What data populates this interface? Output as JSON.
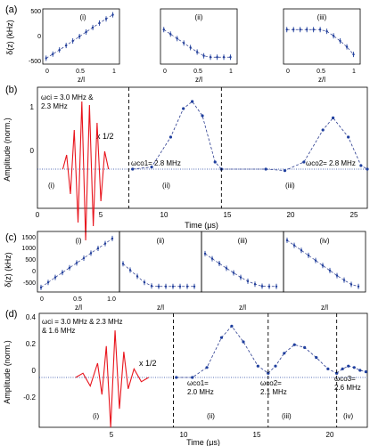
{
  "figure": {
    "panel_labels": [
      "(a)",
      "(b)",
      "(c)",
      "(d)"
    ],
    "a": {
      "ylabel": "δ(z) (kHz)",
      "xlabel": "z/l",
      "yticks": [
        "-500",
        "0",
        "500"
      ],
      "xticks": [
        "0",
        "0.5",
        "1"
      ],
      "subpanels": [
        "(i)",
        "(ii)",
        "(iii)"
      ]
    },
    "b": {
      "ylabel": "Amplitude (norm.)",
      "xlabel": "Time (μs)",
      "yticks": [
        "0",
        "1"
      ],
      "xticks": [
        "0",
        "5",
        "10",
        "15",
        "20",
        "25"
      ],
      "ann_input": [
        "ωci = 3.0 MHz &",
        "2.3 MHz"
      ],
      "ann_scale": "x 1/2",
      "ann_co1": "ωco1= 2.8 MHz",
      "ann_co2": "ωco2= 2.8 MHz",
      "section_labels": [
        "(i)",
        "(ii)",
        "(iii)"
      ]
    },
    "c": {
      "ylabel": "δ(z) (kHz)",
      "xlabel": "z/l",
      "yticks": [
        "-500",
        "0",
        "500",
        "1000",
        "1500"
      ],
      "xticks": [
        "0",
        "0.5",
        "1.0"
      ],
      "subpanels": [
        "(i)",
        "(ii)",
        "(iii)",
        "(iv)"
      ]
    },
    "d": {
      "ylabel": "Amplitude (norm.)",
      "xlabel": "Time (μs)",
      "yticks": [
        "-0.2",
        "0",
        "0.2",
        "0.4"
      ],
      "xticks": [
        "5",
        "10",
        "15",
        "20"
      ],
      "ann_input": [
        "ωci = 3.0 MHz & 2.3 MHz",
        "& 1.6 MHz"
      ],
      "ann_scale": "x 1/2",
      "ann_co1": [
        "ωco1=",
        "2.0 MHz"
      ],
      "ann_co2": [
        "ωco2=",
        "2.1 MHz"
      ],
      "ann_co3": [
        "ωco3=",
        "2.6 MHz"
      ],
      "section_labels": [
        "(i)",
        "(ii)",
        "(iii)",
        "(iv)"
      ]
    }
  },
  "colors": {
    "input": "#e8141c",
    "output": "#1f3f9e",
    "fit": "#2a3b8f",
    "axis": "#000000"
  },
  "chart_data": [
    {
      "type": "scatter",
      "panel": "a-i",
      "xlabel": "z/l",
      "ylabel": "δ(z) (kHz)",
      "xlim": [
        -0.05,
        1.1
      ],
      "ylim": [
        -800,
        800
      ],
      "x": [
        0,
        0.1,
        0.2,
        0.3,
        0.4,
        0.5,
        0.6,
        0.7,
        0.8,
        0.9,
        1.0
      ],
      "y": [
        -630,
        -510,
        -390,
        -260,
        -130,
        0,
        130,
        260,
        390,
        510,
        630
      ]
    },
    {
      "type": "scatter",
      "panel": "a-ii",
      "xlabel": "z/l",
      "xlim": [
        -0.05,
        1.1
      ],
      "ylim": [
        -800,
        800
      ],
      "x": [
        0,
        0.1,
        0.2,
        0.3,
        0.4,
        0.5,
        0.6,
        0.7,
        0.8,
        0.9,
        1.0
      ],
      "y": [
        200,
        70,
        -60,
        -190,
        -320,
        -450,
        -560,
        -600,
        -600,
        -600,
        -600
      ]
    },
    {
      "type": "scatter",
      "panel": "a-iii",
      "xlabel": "z/l",
      "xlim": [
        -0.05,
        1.1
      ],
      "ylim": [
        -800,
        800
      ],
      "x": [
        0,
        0.1,
        0.2,
        0.3,
        0.4,
        0.5,
        0.6,
        0.7,
        0.8,
        0.9,
        1.0
      ],
      "y": [
        200,
        200,
        200,
        200,
        200,
        200,
        150,
        20,
        -130,
        -300,
        -520
      ]
    },
    {
      "type": "line",
      "panel": "b",
      "xlabel": "Time (μs)",
      "ylabel": "Amplitude (norm.)",
      "xlim": [
        0,
        26
      ],
      "ylim": [
        -0.55,
        1.15
      ],
      "series": [
        {
          "name": "input",
          "x": [
            2.0,
            2.3,
            2.6,
            2.9,
            3.2,
            3.5,
            3.8,
            4.1,
            4.4,
            4.7,
            5.0,
            5.3,
            5.6
          ],
          "y": [
            0,
            0.2,
            -0.35,
            0.55,
            -0.75,
            0.95,
            -1.0,
            0.9,
            -0.8,
            0.65,
            -0.45,
            0.25,
            0
          ]
        },
        {
          "name": "output 1",
          "x": [
            7.5,
            9.0,
            10.5,
            11.5,
            12.2,
            13.0,
            14.0,
            14.5
          ],
          "y": [
            0.0,
            0.03,
            0.45,
            0.85,
            0.95,
            0.75,
            0.1,
            0.0
          ]
        },
        {
          "name": "output 2",
          "x": [
            14.5,
            18.0,
            19.5,
            21.0,
            22.5,
            23.3,
            24.5,
            25.5,
            26.0
          ],
          "y": [
            0.0,
            0.0,
            -0.02,
            0.1,
            0.55,
            0.72,
            0.45,
            0.05,
            0.0
          ]
        }
      ],
      "dividers": [
        7.2,
        14.5
      ]
    },
    {
      "type": "scatter",
      "panel": "c",
      "xlabel": "z/l",
      "ylabel": "δ(z) (kHz)",
      "xlim": [
        -0.05,
        1.1
      ],
      "ylim": [
        -700,
        1700
      ],
      "series": [
        {
          "name": "(i)",
          "x": [
            0,
            0.1,
            0.2,
            0.3,
            0.4,
            0.5,
            0.6,
            0.7,
            0.8,
            0.9,
            1.0
          ],
          "y": [
            -520,
            -320,
            -120,
            70,
            260,
            450,
            640,
            840,
            1030,
            1220,
            1420
          ]
        },
        {
          "name": "(ii)",
          "x": [
            0,
            0.1,
            0.2,
            0.3,
            0.4,
            0.5,
            0.6,
            0.7,
            0.8,
            0.9,
            1.0
          ],
          "y": [
            420,
            170,
            -80,
            -320,
            -460,
            -480,
            -480,
            -480,
            -480,
            -480,
            -480
          ]
        },
        {
          "name": "(iii)",
          "x": [
            0,
            0.1,
            0.2,
            0.3,
            0.4,
            0.5,
            0.6,
            0.7,
            0.8,
            0.9,
            1.0
          ],
          "y": [
            820,
            620,
            430,
            240,
            60,
            -120,
            -270,
            -390,
            -470,
            -480,
            -480
          ]
        },
        {
          "name": "(iv)",
          "x": [
            0,
            0.1,
            0.2,
            0.3,
            0.4,
            0.5,
            0.6,
            0.7,
            0.8,
            0.9,
            1.0
          ],
          "y": [
            1350,
            1150,
            950,
            750,
            550,
            350,
            150,
            -50,
            -230,
            -400,
            -480
          ]
        }
      ]
    },
    {
      "type": "line",
      "panel": "d",
      "xlabel": "Time (μs)",
      "ylabel": "Amplitude (norm.)",
      "xlim": [
        0,
        22.5
      ],
      "ylim": [
        -0.35,
        0.45
      ],
      "series": [
        {
          "name": "input",
          "x": [
            2.5,
            3.0,
            3.5,
            4.0,
            4.3,
            4.6,
            4.9,
            5.2,
            5.5,
            5.8,
            6.1,
            6.5,
            7.0,
            7.5
          ],
          "y": [
            0.0,
            0.03,
            -0.06,
            0.1,
            -0.12,
            0.22,
            -0.35,
            0.33,
            -0.22,
            0.18,
            -0.08,
            0.06,
            -0.03,
            0.0
          ]
        },
        {
          "name": "output 1",
          "x": [
            9.4,
            10.5,
            11.5,
            12.5,
            13.2,
            14.0,
            15.0,
            15.7
          ],
          "y": [
            0.0,
            0.0,
            0.07,
            0.28,
            0.36,
            0.25,
            0.08,
            0.03
          ]
        },
        {
          "name": "output 2",
          "x": [
            15.7,
            16.2,
            16.8,
            17.5,
            18.2,
            19.0,
            19.8,
            20.4
          ],
          "y": [
            0.03,
            0.08,
            0.17,
            0.23,
            0.21,
            0.14,
            0.06,
            0.03
          ]
        },
        {
          "name": "output 3",
          "x": [
            20.4,
            20.8,
            21.2,
            21.6,
            22.0,
            22.4
          ],
          "y": [
            0.03,
            0.06,
            0.08,
            0.07,
            0.05,
            0.04
          ]
        }
      ],
      "dividers": [
        9.2,
        15.7,
        20.4
      ]
    }
  ]
}
